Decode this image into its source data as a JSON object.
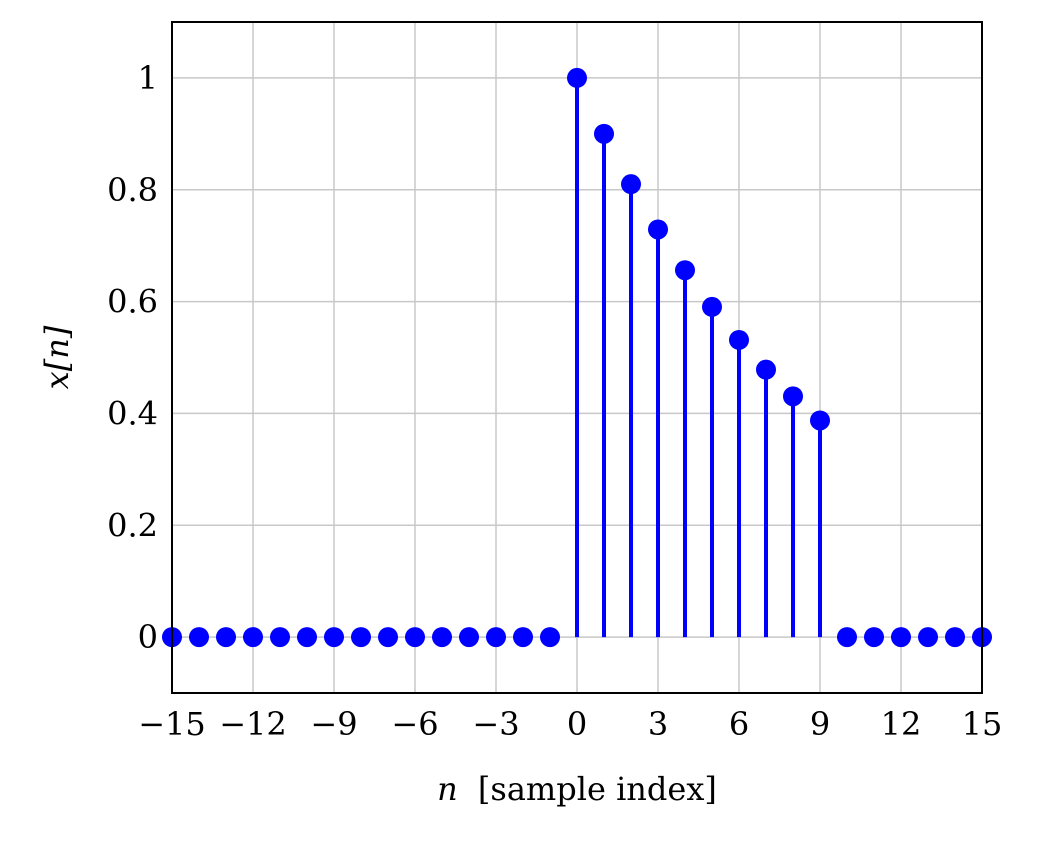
{
  "chart_data": {
    "type": "stem",
    "xlabel_var": "n",
    "xlabel_text": "[sample index]",
    "ylabel": "x[n]",
    "xlim": [
      -15,
      15
    ],
    "ylim": [
      -0.1,
      1.1
    ],
    "x_ticks": [
      -15,
      -12,
      -9,
      -6,
      -3,
      0,
      3,
      6,
      9,
      12,
      15
    ],
    "x_tick_labels": [
      "−15",
      "−12",
      "−9",
      "−6",
      "−3",
      "0",
      "3",
      "6",
      "9",
      "12",
      "15"
    ],
    "y_ticks": [
      0,
      0.2,
      0.4,
      0.6,
      0.8,
      1
    ],
    "y_tick_labels": [
      "0",
      "0.2",
      "0.4",
      "0.6",
      "0.8",
      "1"
    ],
    "grid": true,
    "color": "#0000ff",
    "series": [
      {
        "x": [
          -15,
          -14,
          -13,
          -12,
          -11,
          -10,
          -9,
          -8,
          -7,
          -6,
          -5,
          -4,
          -3,
          -2,
          -1,
          0,
          1,
          2,
          3,
          4,
          5,
          6,
          7,
          8,
          9,
          10,
          11,
          12,
          13,
          14,
          15
        ],
        "y": [
          0,
          0,
          0,
          0,
          0,
          0,
          0,
          0,
          0,
          0,
          0,
          0,
          0,
          0,
          0,
          1,
          0.9,
          0.81,
          0.729,
          0.6561,
          0.5905,
          0.5314,
          0.4783,
          0.4305,
          0.3874,
          0,
          0,
          0,
          0,
          0,
          0
        ]
      }
    ]
  }
}
